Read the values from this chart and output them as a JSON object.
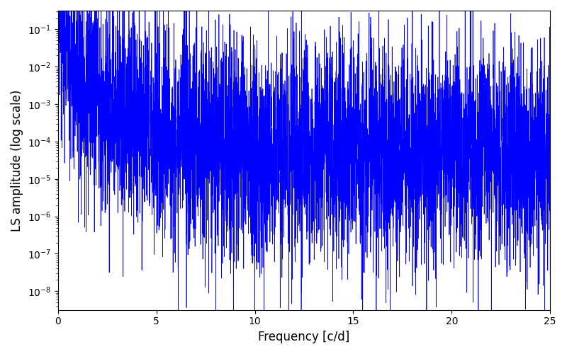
{
  "xlabel": "Frequency [c/d]",
  "ylabel": "LS amplitude (log scale)",
  "line_color": "#0000ff",
  "xlim": [
    0,
    25
  ],
  "ylim_log": [
    -8.5,
    -0.5
  ],
  "figsize": [
    8.0,
    5.0
  ],
  "dpi": 100,
  "seed": 12345,
  "n_points": 5000,
  "freq_max": 25.0,
  "power_law_index": 2.2,
  "noise_log_std": 1.5,
  "noise_floor_log": -4.0,
  "line_width": 0.5
}
